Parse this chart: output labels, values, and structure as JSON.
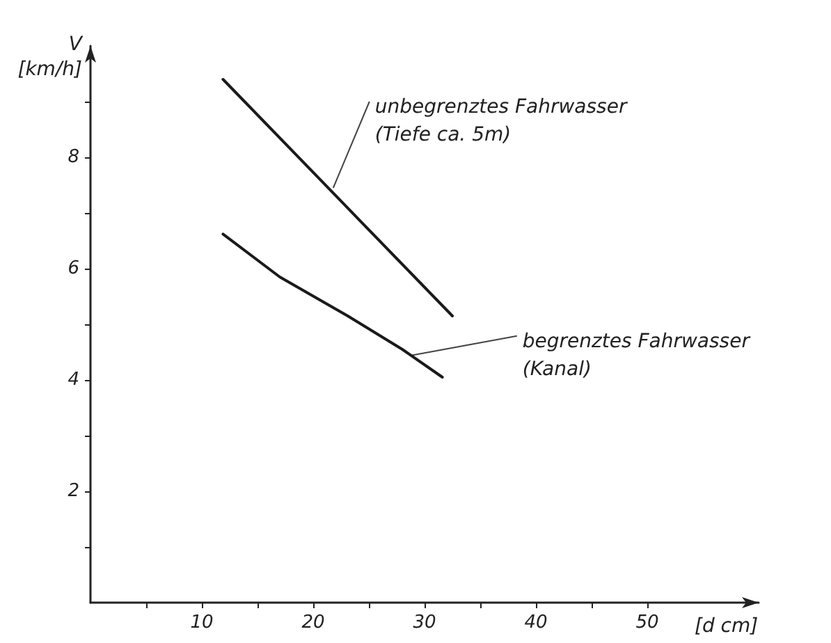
{
  "chart_data": {
    "type": "line",
    "xlabel": "[d cm]",
    "ylabel": "V\n[km/h]",
    "xlim": [
      0,
      60
    ],
    "ylim": [
      0,
      10
    ],
    "xticks": [
      {
        "value": 5,
        "label": null
      },
      10,
      {
        "value": 15,
        "label": null
      },
      20,
      {
        "value": 25,
        "label": null
      },
      30,
      {
        "value": 35,
        "label": null
      },
      40,
      {
        "value": 45,
        "label": null
      },
      50
    ],
    "yticks": [
      {
        "value": 1,
        "label": null
      },
      2,
      {
        "value": 3,
        "label": null
      },
      4,
      {
        "value": 5,
        "label": null
      },
      6,
      {
        "value": 7,
        "label": null
      },
      8,
      {
        "value": 9,
        "label": null
      }
    ],
    "series": [
      {
        "color": "#1a1a1a",
        "x": [
          11.9,
          32.5
        ],
        "values": [
          9.4,
          5.15
        ]
      },
      {
        "color": "#1a1a1a",
        "x": [
          11.9,
          17,
          23.1,
          28,
          31.6
        ],
        "values": [
          6.62,
          5.85,
          5.15,
          4.55,
          4.05
        ]
      }
    ],
    "annotations": [
      {
        "text": "unbegrenztes Fahrwasser\n(Tiefe ca. 5m)",
        "x": 21.8,
        "y": 7.45
      },
      {
        "text": "begrenztes Fahrwasser\n(Kanal)",
        "x": 28.8,
        "y": 4.44
      }
    ],
    "grid": false,
    "legend": false,
    "marker": "none",
    "line_style": "solid"
  }
}
